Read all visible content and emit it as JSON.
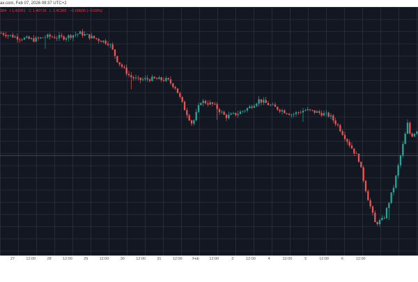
{
  "header": {
    "source_timestamp": "ax.com, Feb 07, 2026 09:37 UTC+2"
  },
  "ohlc": {
    "items": [
      "384",
      "I 1.42091",
      "C 1.40716",
      "L 1.41365",
      "−0.00835 (−0.59%)"
    ],
    "color": "#f23645"
  },
  "colors": {
    "background": "#131722",
    "grid": "#363a45",
    "up": "#26a69a",
    "down": "#ef5350",
    "reference_line": "#b22833",
    "axis_text": "#555555"
  },
  "time_axis": {
    "labels": [
      "27",
      "12:00",
      "28",
      "12:00",
      "29",
      "12:00",
      "30",
      "12:00",
      "31",
      "12:00",
      "Feb",
      "12:00",
      "3",
      "12:00",
      "4",
      "12:00",
      "5",
      "12:00",
      "6",
      "12:00"
    ]
  },
  "chart_data": {
    "type": "candlestick",
    "price_path": [
      {
        "t": 0.0,
        "p": 0.945
      },
      {
        "t": 0.04,
        "p": 0.925
      },
      {
        "t": 0.08,
        "p": 0.915
      },
      {
        "t": 0.11,
        "p": 0.93
      },
      {
        "t": 0.15,
        "p": 0.925
      },
      {
        "t": 0.19,
        "p": 0.945
      },
      {
        "t": 0.22,
        "p": 0.925
      },
      {
        "t": 0.26,
        "p": 0.9
      },
      {
        "t": 0.28,
        "p": 0.82
      },
      {
        "t": 0.31,
        "p": 0.75
      },
      {
        "t": 0.33,
        "p": 0.735
      },
      {
        "t": 0.36,
        "p": 0.74
      },
      {
        "t": 0.4,
        "p": 0.735
      },
      {
        "t": 0.42,
        "p": 0.7
      },
      {
        "t": 0.44,
        "p": 0.61
      },
      {
        "t": 0.46,
        "p": 0.535
      },
      {
        "t": 0.48,
        "p": 0.64
      },
      {
        "t": 0.51,
        "p": 0.625
      },
      {
        "t": 0.54,
        "p": 0.57
      },
      {
        "t": 0.57,
        "p": 0.585
      },
      {
        "t": 0.6,
        "p": 0.615
      },
      {
        "t": 0.62,
        "p": 0.645
      },
      {
        "t": 0.66,
        "p": 0.61
      },
      {
        "t": 0.7,
        "p": 0.58
      },
      {
        "t": 0.73,
        "p": 0.6
      },
      {
        "t": 0.76,
        "p": 0.59
      },
      {
        "t": 0.79,
        "p": 0.575
      },
      {
        "t": 0.81,
        "p": 0.53
      },
      {
        "t": 0.84,
        "p": 0.44
      },
      {
        "t": 0.86,
        "p": 0.38
      },
      {
        "t": 0.88,
        "p": 0.22
      },
      {
        "t": 0.9,
        "p": 0.09
      },
      {
        "t": 0.92,
        "p": 0.11
      },
      {
        "t": 0.945,
        "p": 0.26
      },
      {
        "t": 0.965,
        "p": 0.43
      },
      {
        "t": 0.978,
        "p": 0.54
      },
      {
        "t": 0.985,
        "p": 0.48
      },
      {
        "t": 1.0,
        "p": 0.51
      }
    ],
    "candle_count": 180,
    "reference_level": 0.395
  }
}
